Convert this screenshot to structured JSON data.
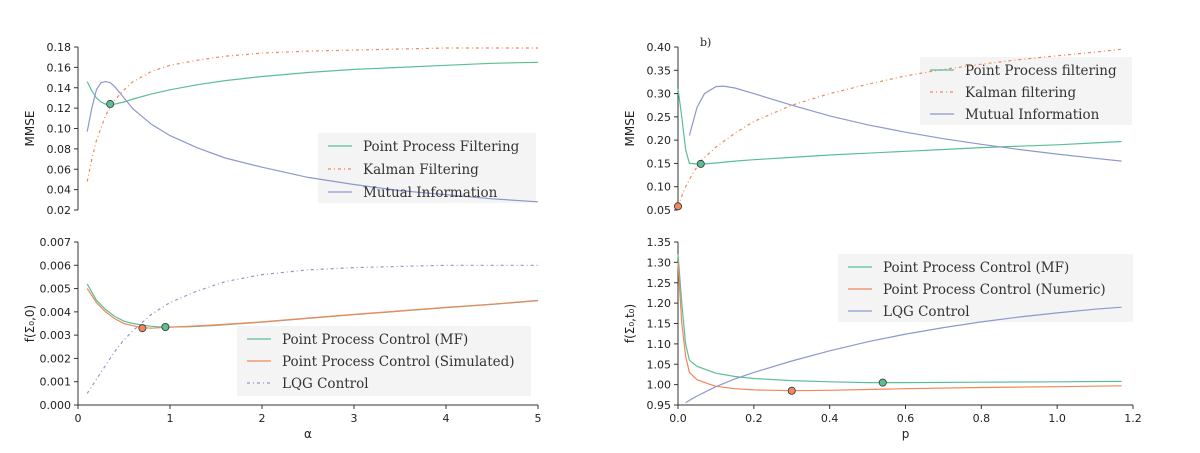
{
  "colors": {
    "green": "#5bbf94",
    "orange": "#f3865a",
    "blue": "#8e97cf",
    "legend_bg": "#f2f2f2"
  },
  "chart_data": [
    {
      "id": "tl",
      "type": "line",
      "panel_label": "",
      "xlabel": "",
      "ylabel": "MMSE",
      "xlim": [
        0,
        5
      ],
      "ylim": [
        0.02,
        0.18
      ],
      "xticks": [],
      "yticks": [
        "0.02",
        "0.04",
        "0.06",
        "0.08",
        "0.10",
        "0.12",
        "0.14",
        "0.16",
        "0.18"
      ],
      "legend_loc": "lower-right",
      "series": [
        {
          "name": "Point Process Filtering",
          "color": "green",
          "style": "solid",
          "x": [
            0.1,
            0.15,
            0.2,
            0.25,
            0.3,
            0.35,
            0.4,
            0.5,
            0.6,
            0.8,
            1.0,
            1.3,
            1.6,
            2.0,
            2.5,
            3.0,
            3.5,
            4.0,
            4.5,
            5.0
          ],
          "y": [
            0.146,
            0.137,
            0.13,
            0.126,
            0.124,
            0.124,
            0.124,
            0.126,
            0.129,
            0.134,
            0.138,
            0.143,
            0.147,
            0.151,
            0.155,
            0.158,
            0.16,
            0.162,
            0.164,
            0.165
          ]
        },
        {
          "name": "Kalman Filtering",
          "color": "orange",
          "style": "dashdot",
          "x": [
            0.1,
            0.15,
            0.2,
            0.3,
            0.4,
            0.5,
            0.6,
            0.8,
            1.0,
            1.3,
            1.6,
            2.0,
            2.5,
            3.0,
            3.5,
            4.0,
            4.5,
            5.0
          ],
          "y": [
            0.048,
            0.07,
            0.088,
            0.113,
            0.128,
            0.138,
            0.146,
            0.156,
            0.162,
            0.167,
            0.171,
            0.174,
            0.176,
            0.177,
            0.178,
            0.179,
            0.179,
            0.179
          ]
        },
        {
          "name": "Mutual Information",
          "color": "blue",
          "style": "solid",
          "x": [
            0.1,
            0.15,
            0.2,
            0.25,
            0.3,
            0.35,
            0.4,
            0.5,
            0.6,
            0.8,
            1.0,
            1.3,
            1.6,
            2.0,
            2.5,
            3.0,
            3.5,
            4.0,
            4.5,
            5.0
          ],
          "y": [
            0.097,
            0.12,
            0.138,
            0.145,
            0.146,
            0.145,
            0.141,
            0.13,
            0.119,
            0.104,
            0.093,
            0.081,
            0.071,
            0.062,
            0.052,
            0.045,
            0.039,
            0.035,
            0.031,
            0.028
          ]
        }
      ],
      "markers": [
        {
          "x": 0.35,
          "y": 0.124,
          "color": "green"
        }
      ]
    },
    {
      "id": "bl",
      "type": "line",
      "panel_label": "",
      "xlabel": "α",
      "ylabel": "f(Σ₀,0)",
      "xlim": [
        0,
        5
      ],
      "ylim": [
        0.0,
        0.007
      ],
      "xticks": [
        "0",
        "1",
        "2",
        "3",
        "4",
        "5"
      ],
      "yticks": [
        "0.000",
        "0.001",
        "0.002",
        "0.003",
        "0.004",
        "0.005",
        "0.006",
        "0.007"
      ],
      "legend_loc": "lower-right",
      "series": [
        {
          "name": "Point Process Control (MF)",
          "color": "green",
          "style": "solid",
          "x": [
            0.1,
            0.2,
            0.3,
            0.4,
            0.5,
            0.6,
            0.7,
            0.8,
            0.9,
            1.0,
            1.2,
            1.5,
            2.0,
            2.5,
            3.0,
            3.5,
            4.0,
            4.5,
            5.0
          ],
          "y": [
            0.0052,
            0.0045,
            0.0041,
            0.0038,
            0.0036,
            0.0035,
            0.00343,
            0.00338,
            0.00335,
            0.00335,
            0.00336,
            0.00342,
            0.00356,
            0.00372,
            0.00388,
            0.00403,
            0.00418,
            0.00432,
            0.00448
          ]
        },
        {
          "name": "Point Process Control (Simulated)",
          "color": "orange",
          "style": "solid",
          "x": [
            0.1,
            0.2,
            0.3,
            0.4,
            0.5,
            0.6,
            0.7,
            0.8,
            0.9,
            1.0,
            1.2,
            1.5,
            2.0,
            2.5,
            3.0,
            3.5,
            4.0,
            4.5,
            5.0
          ],
          "y": [
            0.005,
            0.0044,
            0.004,
            0.0037,
            0.0035,
            0.0034,
            0.00332,
            0.0033,
            0.00332,
            0.00334,
            0.00338,
            0.00344,
            0.00357,
            0.00373,
            0.00389,
            0.00404,
            0.00419,
            0.00433,
            0.00449
          ]
        },
        {
          "name": "LQG Control",
          "color": "blue",
          "style": "dashdot",
          "x": [
            0.1,
            0.2,
            0.3,
            0.4,
            0.5,
            0.6,
            0.8,
            1.0,
            1.3,
            1.6,
            2.0,
            2.5,
            3.0,
            3.5,
            4.0,
            4.5,
            5.0
          ],
          "y": [
            0.0005,
            0.0011,
            0.0017,
            0.0023,
            0.0028,
            0.0032,
            0.0039,
            0.0044,
            0.0049,
            0.0053,
            0.0056,
            0.0058,
            0.0059,
            0.00595,
            0.006,
            0.006,
            0.006
          ]
        }
      ],
      "markers": [
        {
          "x": 0.7,
          "y": 0.0033,
          "color": "orange"
        },
        {
          "x": 0.95,
          "y": 0.00335,
          "color": "green"
        }
      ]
    },
    {
      "id": "tr",
      "type": "line",
      "panel_label": "b)",
      "xlabel": "",
      "ylabel": "MMSE",
      "xlim": [
        0,
        1.2
      ],
      "ylim": [
        0.05,
        0.4
      ],
      "xticks": [],
      "yticks": [
        "0.05",
        "0.10",
        "0.15",
        "0.20",
        "0.25",
        "0.30",
        "0.35",
        "0.40"
      ],
      "legend_loc": "upper-right",
      "series": [
        {
          "name": "Point Process filtering",
          "color": "green",
          "style": "solid",
          "x": [
            0.0,
            0.01,
            0.02,
            0.03,
            0.05,
            0.07,
            0.1,
            0.15,
            0.2,
            0.3,
            0.4,
            0.5,
            0.6,
            0.7,
            0.8,
            0.9,
            1.0,
            1.1,
            1.17
          ],
          "y": [
            0.31,
            0.25,
            0.18,
            0.15,
            0.149,
            0.149,
            0.151,
            0.155,
            0.158,
            0.163,
            0.168,
            0.172,
            0.176,
            0.18,
            0.184,
            0.187,
            0.19,
            0.194,
            0.197
          ]
        },
        {
          "name": "Kalman filtering",
          "color": "orange",
          "style": "dashdot",
          "x": [
            0.0,
            0.01,
            0.02,
            0.04,
            0.06,
            0.1,
            0.15,
            0.2,
            0.3,
            0.4,
            0.5,
            0.6,
            0.7,
            0.8,
            0.9,
            1.0,
            1.1,
            1.17
          ],
          "y": [
            0.058,
            0.08,
            0.1,
            0.13,
            0.155,
            0.185,
            0.215,
            0.24,
            0.275,
            0.3,
            0.32,
            0.338,
            0.352,
            0.363,
            0.373,
            0.381,
            0.389,
            0.395
          ]
        },
        {
          "name": "Mutual Information",
          "color": "blue",
          "style": "solid",
          "x": [
            0.03,
            0.05,
            0.07,
            0.1,
            0.12,
            0.15,
            0.2,
            0.3,
            0.4,
            0.5,
            0.6,
            0.7,
            0.8,
            0.9,
            1.0,
            1.1,
            1.17
          ],
          "y": [
            0.21,
            0.27,
            0.3,
            0.315,
            0.316,
            0.312,
            0.3,
            0.275,
            0.252,
            0.233,
            0.217,
            0.203,
            0.191,
            0.18,
            0.17,
            0.161,
            0.155
          ]
        }
      ],
      "markers": [
        {
          "x": 0.0,
          "y": 0.058,
          "color": "orange"
        },
        {
          "x": 0.06,
          "y": 0.149,
          "color": "green"
        }
      ]
    },
    {
      "id": "br",
      "type": "line",
      "panel_label": "",
      "xlabel": "p",
      "ylabel": "f(Σ₀,t₀)",
      "xlim": [
        0,
        1.2
      ],
      "ylim": [
        0.95,
        1.35
      ],
      "xticks": [
        "0.0",
        "0.2",
        "0.4",
        "0.6",
        "0.8",
        "1.0",
        "1.2"
      ],
      "yticks": [
        "0.95",
        "1.00",
        "1.05",
        "1.10",
        "1.15",
        "1.20",
        "1.25",
        "1.30",
        "1.35"
      ],
      "legend_loc": "upper-right",
      "series": [
        {
          "name": "Point Process Control (MF)",
          "color": "green",
          "style": "solid",
          "x": [
            0.0,
            0.01,
            0.02,
            0.03,
            0.05,
            0.08,
            0.1,
            0.15,
            0.2,
            0.3,
            0.4,
            0.5,
            0.54,
            0.6,
            0.8,
            1.0,
            1.17
          ],
          "y": [
            1.32,
            1.2,
            1.1,
            1.06,
            1.045,
            1.035,
            1.028,
            1.02,
            1.015,
            1.01,
            1.007,
            1.005,
            1.005,
            1.005,
            1.006,
            1.007,
            1.008
          ]
        },
        {
          "name": "Point Process Control (Numeric)",
          "color": "orange",
          "style": "solid",
          "x": [
            0.0,
            0.01,
            0.02,
            0.03,
            0.05,
            0.08,
            0.1,
            0.15,
            0.2,
            0.3,
            0.4,
            0.5,
            0.6,
            0.8,
            1.0,
            1.17
          ],
          "y": [
            1.3,
            1.15,
            1.07,
            1.03,
            1.012,
            1.002,
            0.996,
            0.99,
            0.987,
            0.985,
            0.986,
            0.988,
            0.99,
            0.993,
            0.995,
            0.997
          ]
        },
        {
          "name": "LQG Control",
          "color": "blue",
          "style": "solid",
          "x": [
            0.02,
            0.05,
            0.1,
            0.15,
            0.2,
            0.3,
            0.4,
            0.5,
            0.6,
            0.7,
            0.8,
            0.9,
            1.0,
            1.1,
            1.17
          ],
          "y": [
            0.956,
            0.972,
            0.995,
            1.014,
            1.03,
            1.058,
            1.083,
            1.105,
            1.124,
            1.14,
            1.154,
            1.166,
            1.176,
            1.185,
            1.19
          ]
        }
      ],
      "markers": [
        {
          "x": 0.3,
          "y": 0.985,
          "color": "orange"
        },
        {
          "x": 0.54,
          "y": 1.005,
          "color": "green"
        }
      ]
    }
  ]
}
